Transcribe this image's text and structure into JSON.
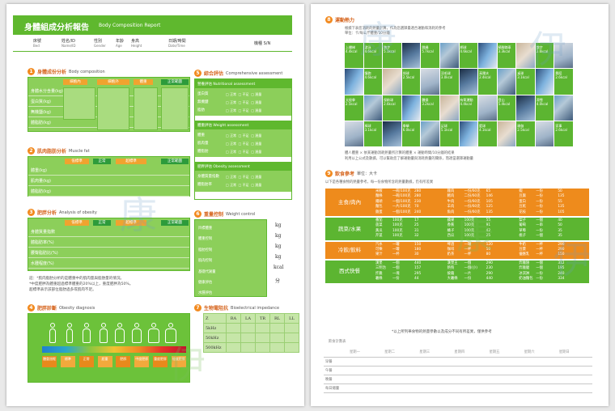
{
  "left_page": {
    "header": {
      "title_zh": "身體組成分析報告",
      "title_en": "Body Composition Report"
    },
    "info_fields": [
      {
        "label": "床號",
        "sub": "Bed"
      },
      {
        "label": "姓名/ID",
        "sub": "Name/ID"
      },
      {
        "label": "性別",
        "sub": "Gender"
      },
      {
        "label": "年齡",
        "sub": "Age"
      },
      {
        "label": "身高",
        "sub": "Height"
      },
      {
        "label": "日期/時間",
        "sub": "Date/Time"
      },
      {
        "label": "機種 S/N",
        "sub": ""
      }
    ],
    "sections": {
      "s1": {
        "num": "1",
        "zh": "身體成份分析",
        "en": "Body composition",
        "headers": [
          "細胞內",
          "細胞外",
          "體重",
          "正常範圍"
        ],
        "rows": [
          "身體水分含量(kg)",
          "蛋白質(kg)",
          "無機鹽(kg)",
          "體脂肪(kg)"
        ]
      },
      "s2": {
        "num": "2",
        "zh": "肌肉脂肪分析",
        "en": "Muscle fat",
        "headers": [
          "低標準",
          "正常",
          "超標準",
          "正常範圍"
        ],
        "rows": [
          "體重(kg)",
          "肌肉量(kg)",
          "體脂肪(kg)"
        ]
      },
      "s3": {
        "num": "3",
        "zh": "肥胖分析",
        "en": "Analysis of obesity",
        "headers": [
          "低標準",
          "正常",
          "超標準",
          "正常範圍"
        ],
        "rows": [
          "身體質量指數",
          "體脂肪率(%)",
          "腰臀脂肪比(%)",
          "水腫程度(%)"
        ]
      },
      "s4": {
        "num": "4",
        "zh": "肥胖診斷",
        "en": "Obesity diagnosis",
        "labels": [
          "體重過輕",
          "標準",
          "正常",
          "超重",
          "肥胖",
          "中度肥胖",
          "重度肥胖",
          "極度肥胖"
        ]
      },
      "s5": {
        "num": "5",
        "zh": "綜合評估",
        "en": "Comprehensive assessment",
        "groups": [
          {
            "title": "營養評估 Nutritional assessment",
            "rows": [
              "蛋白質",
              "無機鹽",
              "脂肪"
            ],
            "opts": [
              "正常",
              "不足",
              "過量"
            ]
          },
          {
            "title": "體重評估 Weight assessment",
            "rows": [
              "體重",
              "肌肉量",
              "體脂肪"
            ],
            "opts": [
              "正常",
              "不足",
              "過量"
            ]
          },
          {
            "title": "肥胖評估 Obesity assessment",
            "rows": [
              "身體質量指數",
              "體脂肪率"
            ],
            "opts": [
              "正常",
              "不足",
              "過量"
            ]
          }
        ]
      },
      "s6": {
        "num": "6",
        "zh": "重量控制",
        "en": "Weight control",
        "rows": [
          "目標體重",
          "體重控制",
          "脂肪控制",
          "肌肉控制",
          "基礎代謝量",
          "健康評估",
          "水腫評估"
        ],
        "units": [
          "kg",
          "kg",
          "kg",
          "kg",
          "kcal",
          "分"
        ]
      },
      "s7": {
        "num": "7",
        "zh": "生物電阻抗",
        "en": "Bioelectrical impedance",
        "cols": [
          "Z",
          "RA",
          "LA",
          "TR",
          "RL",
          "LL"
        ],
        "rows": [
          "5kHz",
          "50kHz",
          "500kHz"
        ]
      }
    },
    "note": [
      "註：*肌肉脂肪分析的是體重中的肌肉量與脂肪量的情況。",
      "*中度肥胖為體重超過標準體重的20%以上，重度肥胖為50%。",
      "超標準表示該部位脂肪過多或肌肉不足。"
    ]
  },
  "right_page": {
    "s8": {
      "num": "8",
      "zh": "運動熱力",
      "en": "",
      "desc": [
        "根據下表您消耗的熱量計算，作為您選擇最適合運動和消耗的參考",
        "單位：卡/每公斤體重/10分鐘"
      ],
      "activities": [
        [
          "上樓梯",
          "4.4kcal"
        ],
        [
          "游泳",
          "4.6kcal"
        ],
        [
          "跑步",
          "5.1kcal"
        ],
        [
          "",
          ""
        ],
        [
          "跳繩",
          "5.7kcal"
        ],
        [
          "",
          ""
        ],
        [
          "網球",
          "4.6kcal"
        ],
        [
          "",
          ""
        ],
        [
          "騎腳踏車",
          "3.3kcal"
        ],
        [
          "",
          ""
        ],
        [
          "散步",
          "2.6kcal"
        ],
        [
          "",
          ""
        ],
        [
          "",
          ""
        ],
        [
          "慢跑",
          "4.6kcal"
        ],
        [
          "",
          ""
        ],
        [
          "排球",
          "2.5kcal"
        ],
        [
          "",
          ""
        ],
        [
          "羽毛球",
          "3.0kcal"
        ],
        [
          "",
          ""
        ],
        [
          "高爾夫",
          "2.4kcal"
        ],
        [
          "",
          ""
        ],
        [
          "桌球",
          "3.1kcal"
        ],
        [
          "",
          ""
        ],
        [
          "舞蹈",
          "2.6kcal"
        ],
        [
          "太極拳",
          "2.5kcal"
        ],
        [
          "",
          ""
        ],
        [
          "保齡球",
          "2.6kcal"
        ],
        [
          "",
          ""
        ],
        [
          "體操",
          "3.2kcal"
        ],
        [
          "",
          ""
        ],
        [
          "有氧運動",
          "4.4kcal"
        ],
        [
          "",
          ""
        ],
        [
          "登山",
          "5.4kcal"
        ],
        [
          "",
          ""
        ],
        [
          "滑雪",
          "4.0kcal"
        ],
        [
          "",
          ""
        ],
        [
          "",
          ""
        ],
        [
          "棒球",
          "3.1kcal"
        ],
        [
          "",
          ""
        ],
        [
          "拳擊",
          "6.0kcal"
        ],
        [
          "",
          ""
        ],
        [
          "足球",
          "5.1kcal"
        ],
        [
          "",
          ""
        ],
        [
          "籃球",
          "4.1kcal"
        ],
        [
          "",
          ""
        ],
        [
          "瑜伽",
          "2.5kcal"
        ],
        [
          "",
          ""
        ],
        [
          "家事",
          "2.6kcal"
        ]
      ],
      "footnote": [
        "體人體重 × 依某運動消耗熱量所計算的體重 × 運動時間/10分鐘的結果",
        "利用以上公式及數據，可以幫助您了解運動量與消耗熱量的關係，而適當選擇運動量"
      ]
    },
    "s9": {
      "num": "9",
      "zh": "飲食參考",
      "en": "單位：大卡",
      "subtitle": "以下是各種食物的熱量參考，每一份食物所含的熱量數據，仍有所差異",
      "rows": [
        {
          "cat": "主食/肉內",
          "cols": [
            [
              "米飯",
              "一碗/100克",
              "280"
            ],
            [
              "麵條",
              "一碗/100克",
              "280"
            ],
            [
              "饅頭",
              "一個/100克",
              "230"
            ],
            [
              "麵包",
              "一片/100克",
              "70"
            ],
            [
              "雞蛋",
              "一個/100克",
              "240"
            ],
            [
              "雞肉",
              "一份/60克",
              "65"
            ],
            [
              "豬肉",
              "二份/60克",
              "146"
            ],
            [
              "牛肉",
              "一份/60克",
              "105"
            ],
            [
              "羊肉",
              "一份/60克",
              "125"
            ],
            [
              "魚肉",
              "一份/60克",
              "135"
            ],
            [
              "蝦",
              "一份",
              "50"
            ],
            [
              "豆腐",
              "一份",
              "135"
            ],
            [
              "蛋白",
              "一份",
              "55"
            ],
            [
              "豆乾",
              "一份",
              "135"
            ],
            [
              "花枝",
              "一份",
              "105"
            ]
          ]
        },
        {
          "cat": "蔬菜/水果",
          "cols": [
            [
              "番茄",
              "100克",
              "17"
            ],
            [
              "菠菜",
              "100克",
              "25"
            ],
            [
              "黃瓜",
              "100克",
              "31"
            ],
            [
              "芹菜",
              "100克",
              "32"
            ],
            [
              "蘋果",
              "100克",
              "55"
            ],
            [
              "香蕉",
              "100克",
              "91"
            ],
            [
              "橘子",
              "100克",
              "42"
            ],
            [
              "西瓜",
              "100克",
              "25"
            ],
            [
              "梨子",
              "一個",
              "40"
            ],
            [
              "葡萄",
              "一串",
              "50"
            ],
            [
              "草莓",
              "一份",
              "35"
            ],
            [
              "桃子",
              "一個",
              "35"
            ]
          ]
        },
        {
          "cat": "冷飲/飲料",
          "cols": [
            [
              "汽水",
              "一罐",
              "150"
            ],
            [
              "可樂",
              "一罐",
              "180"
            ],
            [
              "果汁",
              "一杯",
              "30"
            ],
            [
              "啤酒",
              "一罐",
              "120"
            ],
            [
              "咖啡",
              "一杯",
              "50"
            ],
            [
              "奶茶",
              "一杯",
              "80"
            ],
            [
              "牛奶",
              "一杯",
              "290"
            ],
            [
              "豆漿",
              "一杯",
              "290"
            ],
            [
              "優酪乳",
              "一杯",
              "150"
            ]
          ]
        },
        {
          "cat": "西式快餐",
          "cols": [
            [
              "漢堡",
              "一個",
              "440"
            ],
            [
              "三明治",
              "一個",
              "157"
            ],
            [
              "炸雞",
              "一塊",
              "295"
            ],
            [
              "薯條",
              "一份",
              "44"
            ],
            [
              "漢堡王",
              "一個",
              "290"
            ],
            [
              "熱狗",
              "一個(小)",
              "230"
            ],
            [
              "披薩",
              "一片",
              "290"
            ],
            [
              "大薯條",
              "一份",
              "440"
            ],
            [
              "炸雞翅",
              "一個",
              "312"
            ],
            [
              "炸雞腿",
              "一個",
              "195"
            ],
            [
              "冰淇淋",
              "一份",
              "240"
            ],
            [
              "奶油麵包",
              "一份",
              "334"
            ]
          ]
        }
      ],
      "note": "*以上所列舉食物的熱量參數以及成分不同有所差異，僅供參考"
    },
    "record": {
      "title": "飲食計劃表",
      "days": [
        "星期一",
        "星期二",
        "星期三",
        "星期四",
        "星期五",
        "星期六",
        "星期日"
      ],
      "meals": [
        "早餐",
        "午餐",
        "晚餐",
        "每日總量"
      ]
    }
  },
  "colors": {
    "green": "#5fb82e",
    "orange": "#ee8b1c",
    "light_green": "#8ccf5a"
  }
}
